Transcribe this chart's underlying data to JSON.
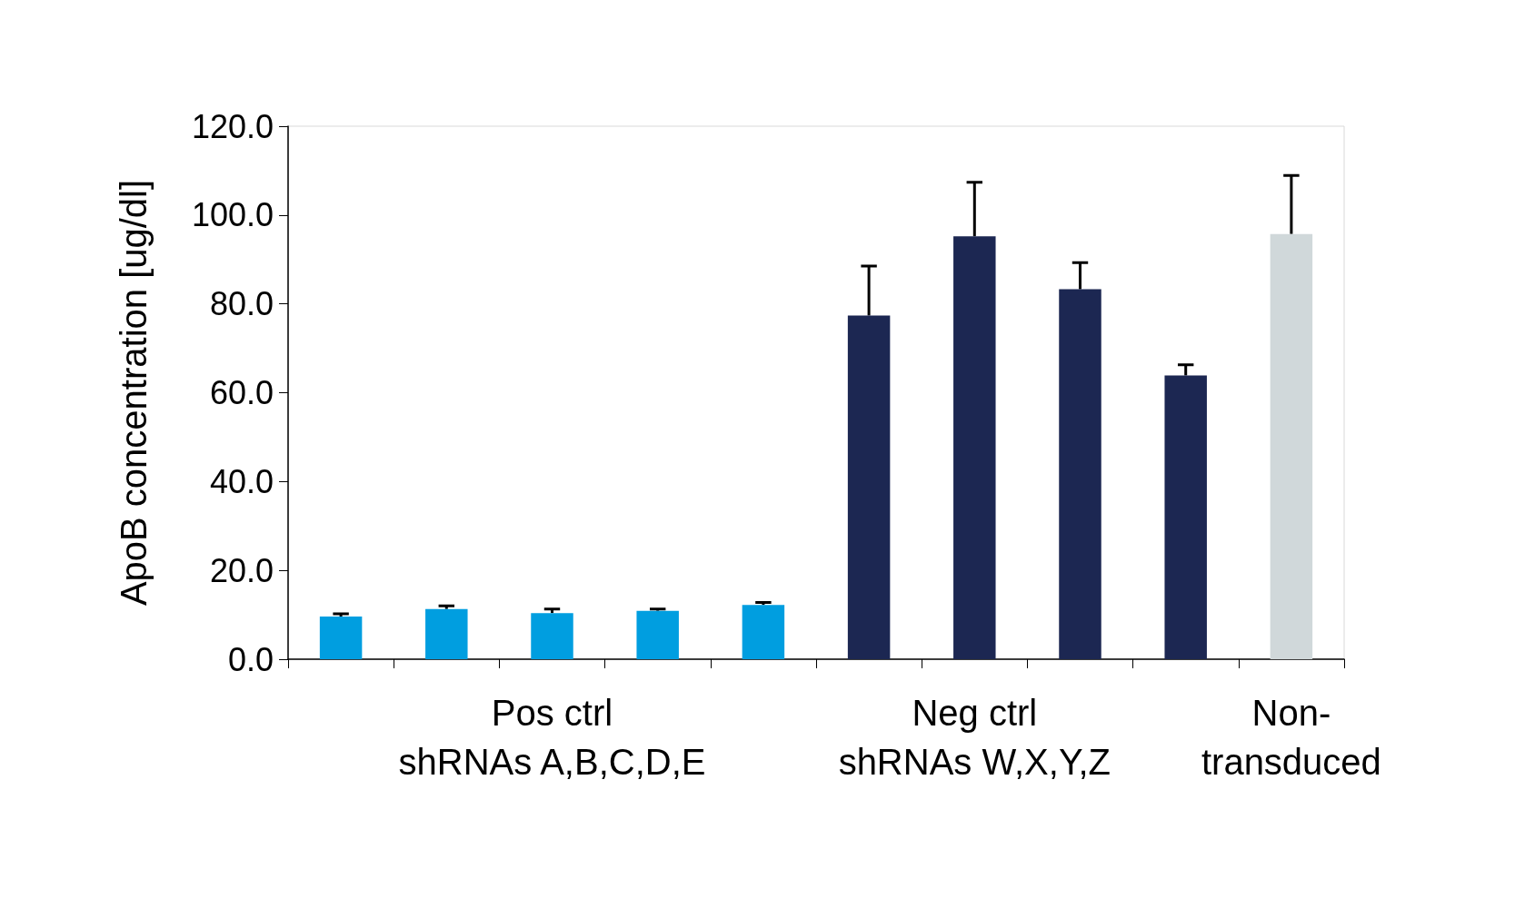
{
  "chart_data": {
    "type": "bar",
    "ylabel": "ApoB concentration [ug/dl]",
    "categories": [
      null,
      null,
      "Pos ctrl\nshRNAs A,B,C,D,E",
      null,
      null,
      null,
      "Neg ctrl\nshRNAs W,X,Y,Z",
      null,
      null,
      "Non-\ntransduced"
    ],
    "values": [
      9.6,
      11.3,
      10.4,
      10.9,
      12.2,
      77.4,
      95.2,
      83.3,
      63.9,
      95.7
    ],
    "colors": [
      "#009ee0",
      "#009ee0",
      "#009ee0",
      "#009ee0",
      "#009ee0",
      "#1c2752",
      "#1c2752",
      "#1c2752",
      "#1c2752",
      "#d0d8da"
    ],
    "errors": [
      [
        9.6,
        10.2
      ],
      [
        11.3,
        12.0
      ],
      [
        10.4,
        11.3
      ],
      [
        10.9,
        11.3
      ],
      [
        12.2,
        12.8
      ],
      [
        77.4,
        88.5
      ],
      [
        95.2,
        107.4
      ],
      [
        83.3,
        89.3
      ],
      [
        63.9,
        66.3
      ],
      [
        95.7,
        108.9
      ]
    ],
    "ylim": [
      0,
      120
    ],
    "yticks": [
      {
        "value": 0,
        "label": "0.0"
      },
      {
        "value": 20,
        "label": "20.0"
      },
      {
        "value": 40,
        "label": "40.0"
      },
      {
        "value": 60,
        "label": "60.0"
      },
      {
        "value": 80,
        "label": "80.0"
      },
      {
        "value": 100,
        "label": "100.0"
      },
      {
        "value": 120,
        "label": "120.0"
      }
    ],
    "grid": false
  }
}
